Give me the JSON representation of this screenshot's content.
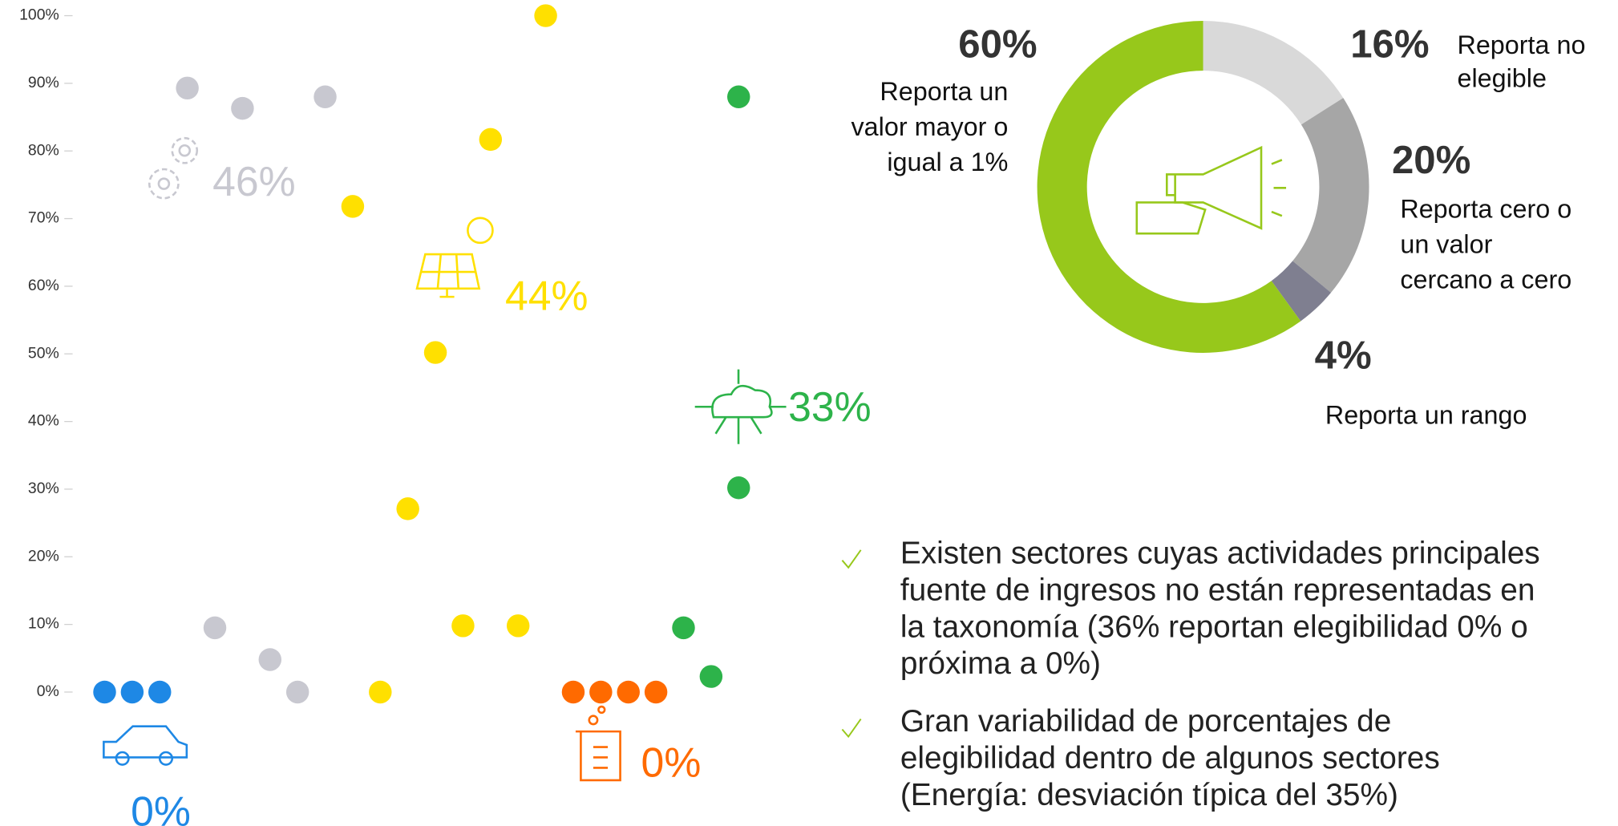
{
  "chart_data": [
    {
      "type": "scatter",
      "xlim": [
        -1.35,
        24.8
      ],
      "ylim": [
        0,
        100
      ],
      "yticks": [
        {
          "value": 0,
          "label": "0%"
        },
        {
          "value": 10,
          "label": "10%"
        },
        {
          "value": 20,
          "label": "20%"
        },
        {
          "value": 30,
          "label": "30%"
        },
        {
          "value": 40,
          "label": "40%"
        },
        {
          "value": 50,
          "label": "50%"
        },
        {
          "value": 60,
          "label": "60%"
        },
        {
          "value": 70,
          "label": "70%"
        },
        {
          "value": 80,
          "label": "80%"
        },
        {
          "value": 90,
          "label": "90%"
        },
        {
          "value": 100,
          "label": "100%"
        }
      ],
      "series": [
        {
          "color": "#1e88e5",
          "label": "0%",
          "x": [
            0,
            1,
            2
          ],
          "values": [
            0,
            0,
            0
          ]
        },
        {
          "color": "#c8c8d0",
          "label": "46%",
          "x": [
            3,
            4,
            5,
            6,
            7,
            8
          ],
          "values": [
            89.3,
            9.5,
            86.3,
            4.8,
            0,
            88.0
          ]
        },
        {
          "color": "#ffe000",
          "label": "44%",
          "x": [
            9,
            10,
            11,
            12,
            13,
            14,
            15,
            16
          ],
          "values": [
            71.8,
            0,
            27.1,
            50.2,
            9.8,
            81.7,
            9.8,
            100
          ]
        },
        {
          "color": "#ff6a00",
          "label": "0%",
          "x": [
            17,
            18,
            19,
            20
          ],
          "values": [
            0,
            0,
            0,
            0
          ]
        },
        {
          "color": "#2db34a",
          "label": "33%",
          "x": [
            21,
            22,
            23,
            23
          ],
          "values": [
            9.5,
            2.3,
            30.2,
            88.0
          ]
        }
      ]
    },
    {
      "type": "donut",
      "values": [
        16,
        20,
        4,
        60
      ],
      "value_labels": [
        "16%",
        "20%",
        "4%",
        "60%"
      ],
      "colors": [
        "#d9d9d9",
        "#a6a6a6",
        "#7f7f90",
        "#97c81b"
      ],
      "categories": [
        [
          "Reporta no",
          "elegible"
        ],
        [
          "Reporta cero o",
          "un valor",
          "cercano a cero"
        ],
        [
          "Reporta un rango"
        ],
        [
          "Reporta un",
          "valor mayor o",
          "igual a 1%"
        ]
      ]
    }
  ],
  "bullets": [
    [
      "Existen sectores cuyas actividades principales",
      "fuente de ingresos no están representadas en",
      "la taxonomía (36% reportan elegibilidad 0% o",
      "próxima a 0%)"
    ],
    [
      "Gran variabilidad de porcentajes de",
      "elegibilidad dentro de algunos sectores",
      "(Energía: desviación típica del 35%)"
    ]
  ]
}
